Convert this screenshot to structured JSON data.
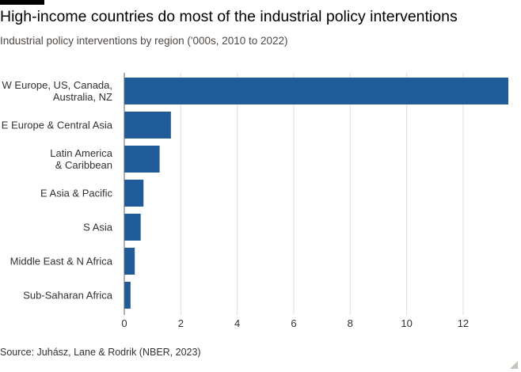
{
  "header": {
    "title": "High-income countries do most of the industrial policy interventions",
    "subtitle": "Industrial policy interventions by region ('000s, 2010 to 2022)"
  },
  "footer": {
    "source": "Source: Juhász, Lane & Rodrik (NBER, 2023)"
  },
  "colors": {
    "bar": "#1f5c99",
    "grid": "#e3ddd8",
    "text": "#33302e"
  },
  "chart_data": {
    "type": "bar",
    "orientation": "horizontal",
    "title": "High-income countries do most of the industrial policy interventions",
    "subtitle": "Industrial policy interventions by region ('000s, 2010 to 2022)",
    "categories": [
      [
        "W Europe, US, Canada,",
        "Australia, NZ"
      ],
      [
        "E Europe & Central Asia"
      ],
      [
        "Latin America",
        "& Caribbean"
      ],
      [
        "E Asia & Pacific"
      ],
      [
        "S Asia"
      ],
      [
        "Middle East & N Africa"
      ],
      [
        "Sub-Saharan Africa"
      ]
    ],
    "values": [
      13.6,
      1.65,
      1.25,
      0.68,
      0.58,
      0.37,
      0.22
    ],
    "xlim": [
      0,
      13.6
    ],
    "xticks": [
      "0",
      "2",
      "4",
      "6",
      "8",
      "10",
      "12"
    ],
    "grid": true,
    "xlabel": "",
    "ylabel": ""
  }
}
